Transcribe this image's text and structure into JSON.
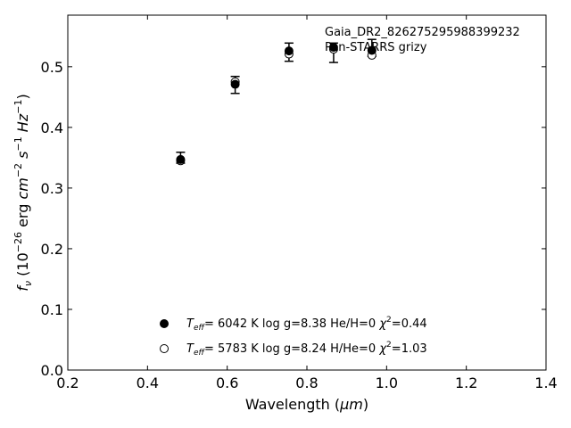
{
  "chart_data": {
    "type": "scatter",
    "xlabel_main": "Wavelength (",
    "xlabel_unit": "μm",
    "xlabel_close": ")",
    "ylabel": "fν (10^-26 erg cm^-2 s^-1 Hz^-1)",
    "xlim": [
      0.2,
      1.4
    ],
    "ylim": [
      0.0,
      0.585
    ],
    "x_ticks": [
      0.2,
      0.4,
      0.6,
      0.8,
      1.0,
      1.2,
      1.4
    ],
    "x_tick_labels": [
      "0.2",
      "0.4",
      "0.6",
      "0.8",
      "1.0",
      "1.2",
      "1.4"
    ],
    "y_ticks": [
      0.0,
      0.1,
      0.2,
      0.3,
      0.4,
      0.5
    ],
    "y_tick_labels": [
      "0.0",
      "0.1",
      "0.2",
      "0.3",
      "0.4",
      "0.5"
    ],
    "grid": false,
    "annotation_line1": "Gaia_DR2_826275295988399232",
    "annotation_line2": "Pan-STARRS grizy",
    "observed": {
      "x": [
        0.483,
        0.62,
        0.755,
        0.867,
        0.963
      ],
      "y": [
        0.35,
        0.47,
        0.524,
        0.523,
        0.531
      ],
      "yerr": [
        0.009,
        0.014,
        0.015,
        0.016,
        0.014
      ]
    },
    "series": [
      {
        "marker": "filled-circle",
        "label": {
          "teff": "6042 K",
          "logg": "8.38",
          "comp": "He/H=0",
          "chi2": "0.44"
        },
        "x": [
          0.483,
          0.62,
          0.755,
          0.867,
          0.963
        ],
        "y": [
          0.347,
          0.471,
          0.526,
          0.532,
          0.527
        ]
      },
      {
        "marker": "open-circle",
        "label": {
          "teff": "5783 K",
          "logg": "8.24",
          "comp": "H/He=0",
          "chi2": "1.03"
        },
        "x": [
          0.483,
          0.62,
          0.755,
          0.867,
          0.963
        ],
        "y": [
          0.345,
          0.475,
          0.521,
          0.529,
          0.519
        ]
      }
    ],
    "legend_location": "lower-center"
  }
}
